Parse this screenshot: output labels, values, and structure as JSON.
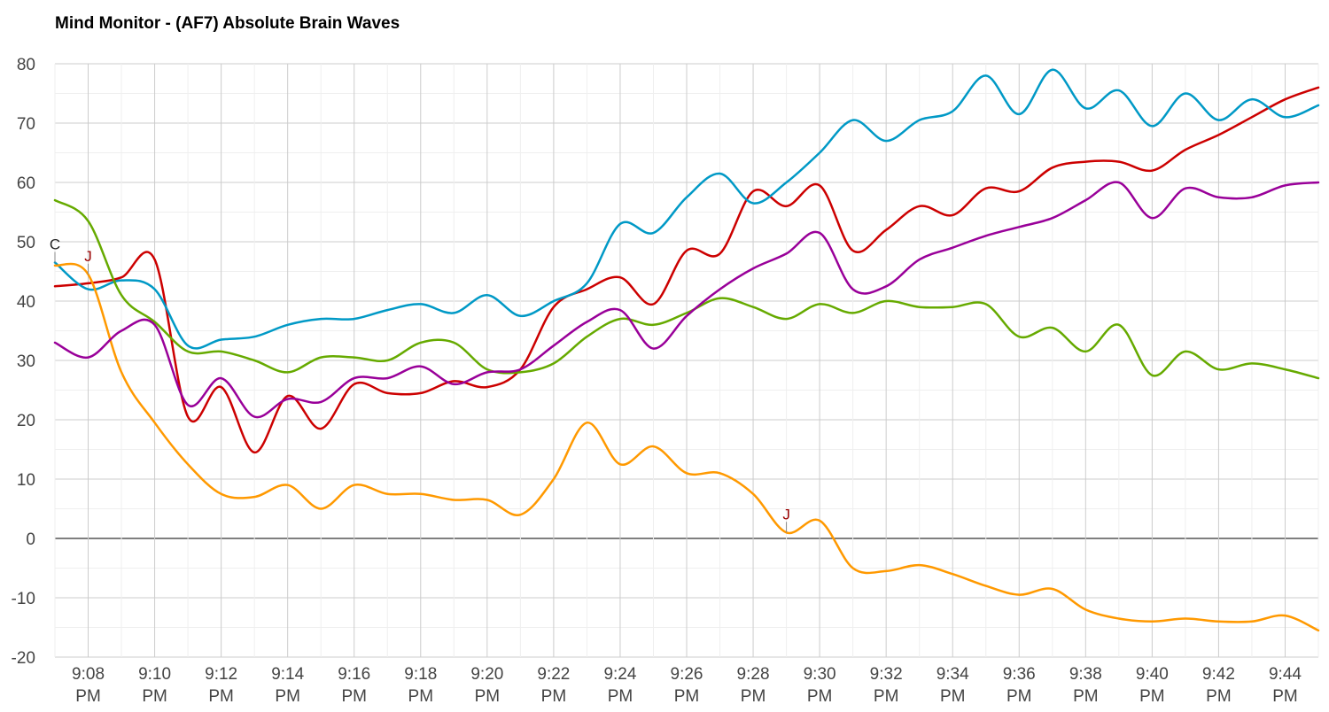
{
  "chart_data": {
    "type": "line",
    "title": "Mind Monitor - (AF7) Absolute Brain Waves",
    "ylim": [
      -20,
      80
    ],
    "yticks": [
      -20,
      -10,
      0,
      10,
      20,
      30,
      40,
      50,
      60,
      70,
      80
    ],
    "xlim": [
      "9:07 PM",
      "9:45 PM"
    ],
    "x_tick_labels": [
      {
        "time": "9:08",
        "suffix": "PM"
      },
      {
        "time": "9:10",
        "suffix": "PM"
      },
      {
        "time": "9:12",
        "suffix": "PM"
      },
      {
        "time": "9:14",
        "suffix": "PM"
      },
      {
        "time": "9:16",
        "suffix": "PM"
      },
      {
        "time": "9:18",
        "suffix": "PM"
      },
      {
        "time": "9:20",
        "suffix": "PM"
      },
      {
        "time": "9:22",
        "suffix": "PM"
      },
      {
        "time": "9:24",
        "suffix": "PM"
      },
      {
        "time": "9:26",
        "suffix": "PM"
      },
      {
        "time": "9:28",
        "suffix": "PM"
      },
      {
        "time": "9:30",
        "suffix": "PM"
      },
      {
        "time": "9:32",
        "suffix": "PM"
      },
      {
        "time": "9:34",
        "suffix": "PM"
      },
      {
        "time": "9:36",
        "suffix": "PM"
      },
      {
        "time": "9:38",
        "suffix": "PM"
      },
      {
        "time": "9:40",
        "suffix": "PM"
      },
      {
        "time": "9:42",
        "suffix": "PM"
      },
      {
        "time": "9:44",
        "suffix": "PM"
      }
    ],
    "grid": true,
    "x": [
      "9:07 PM",
      "9:08 PM",
      "9:09 PM",
      "9:10 PM",
      "9:11 PM",
      "9:12 PM",
      "9:13 PM",
      "9:14 PM",
      "9:15 PM",
      "9:16 PM",
      "9:17 PM",
      "9:18 PM",
      "9:19 PM",
      "9:20 PM",
      "9:21 PM",
      "9:22 PM",
      "9:23 PM",
      "9:24 PM",
      "9:25 PM",
      "9:26 PM",
      "9:27 PM",
      "9:28 PM",
      "9:29 PM",
      "9:30 PM",
      "9:31 PM",
      "9:32 PM",
      "9:33 PM",
      "9:34 PM",
      "9:35 PM",
      "9:36 PM",
      "9:37 PM",
      "9:38 PM",
      "9:39 PM",
      "9:40 PM",
      "9:41 PM",
      "9:42 PM",
      "9:43 PM",
      "9:44 PM",
      "9:45 PM"
    ],
    "series": [
      {
        "color": "#cc0000",
        "values": [
          42.5,
          43,
          44,
          47,
          20.5,
          25.5,
          14.5,
          24,
          18.5,
          26,
          24.5,
          24.5,
          26.5,
          25.5,
          28.5,
          39,
          42,
          44,
          39.5,
          48.5,
          48,
          58.5,
          56,
          59.5,
          48.5,
          52,
          56,
          54.5,
          59,
          58.5,
          62.5,
          63.5,
          63.5,
          62,
          65.5,
          68,
          71,
          74,
          76
        ]
      },
      {
        "color": "#0099c6",
        "values": [
          46.5,
          42,
          43.5,
          42,
          32.5,
          33.5,
          34,
          36,
          37,
          37,
          38.5,
          39.5,
          38,
          41,
          37.5,
          40,
          43,
          53,
          51.5,
          57.5,
          61.5,
          56.5,
          60,
          65,
          70.5,
          67,
          70.5,
          72,
          78,
          71.5,
          79,
          72.5,
          75.5,
          69.5,
          75,
          70.5,
          74,
          71,
          73
        ]
      },
      {
        "color": "#ff9900",
        "values": [
          46,
          44.5,
          28,
          19.5,
          12.5,
          7.5,
          7,
          9,
          5,
          9,
          7.5,
          7.5,
          6.5,
          6.5,
          4,
          10,
          19.5,
          12.5,
          15.5,
          11,
          11,
          7.5,
          1,
          3,
          -5,
          -5.5,
          -4.5,
          -6,
          -8,
          -9.5,
          -8.5,
          -12,
          -13.5,
          -14,
          -13.5,
          -14,
          -14,
          -13,
          -15.5
        ]
      },
      {
        "color": "#66aa00",
        "values": [
          57,
          53.5,
          41,
          36.5,
          31.5,
          31.5,
          30,
          28,
          30.5,
          30.5,
          30,
          33,
          33,
          28.5,
          28,
          29.5,
          34,
          37,
          36,
          38,
          40.5,
          39,
          37,
          39.5,
          38,
          40,
          39,
          39,
          39.5,
          34,
          35.5,
          31.5,
          36,
          27.5,
          31.5,
          28.5,
          29.5,
          28.5,
          27
        ]
      },
      {
        "color": "#990099",
        "values": [
          33,
          30.5,
          35,
          36,
          22.5,
          27,
          20.5,
          23.5,
          23,
          27,
          27,
          29,
          26,
          28,
          28.5,
          32.5,
          36.5,
          38.5,
          32,
          37.5,
          42,
          45.5,
          48,
          51.5,
          42,
          42.5,
          47,
          49,
          51,
          52.5,
          54,
          57,
          60,
          54,
          59,
          57.5,
          57.5,
          59.5,
          60
        ]
      }
    ],
    "annotations": [
      {
        "text": "C",
        "x": "9:07 PM",
        "y": 46.5,
        "color": "#222222"
      },
      {
        "text": "J",
        "x": "9:08 PM",
        "y": 44.5,
        "color": "#990000"
      },
      {
        "text": "J",
        "x": "9:29 PM",
        "y": 1,
        "color": "#990000"
      }
    ]
  }
}
